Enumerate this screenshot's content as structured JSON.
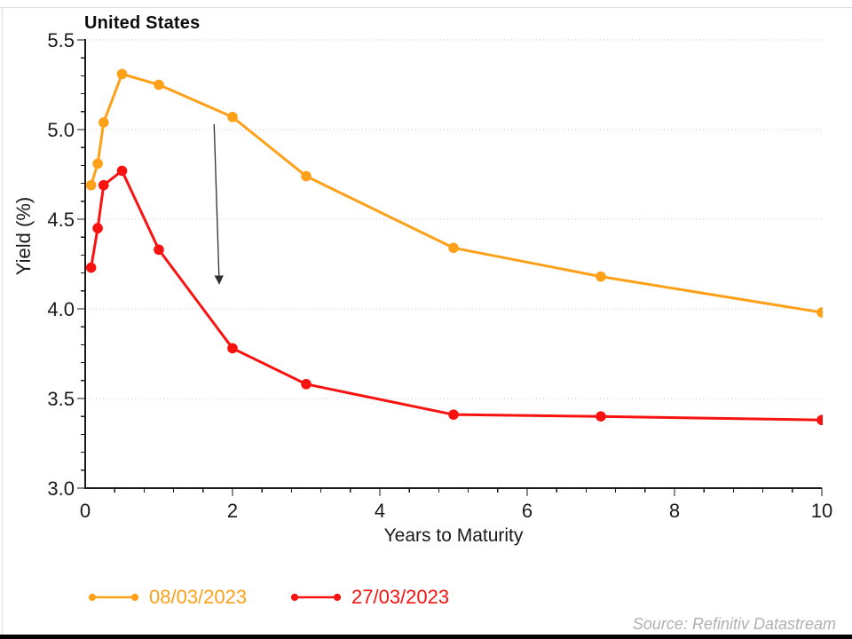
{
  "slide": {
    "source_note": "Source: Refinitiv Datastream"
  },
  "chart_data": {
    "type": "line",
    "title": "United States",
    "xlabel": "Years to Maturity",
    "ylabel": "Yield (%)",
    "xlim": [
      0,
      10
    ],
    "ylim": [
      3.0,
      5.5
    ],
    "x_major_ticks": [
      0,
      2,
      4,
      6,
      8,
      10
    ],
    "x_minor_step": 0.4,
    "y_major_ticks": [
      3.0,
      3.5,
      4.0,
      4.5,
      5.0,
      5.5
    ],
    "y_minor_step": 0.1,
    "grid": "horizontal dotted gridlines at y major ticks",
    "grid_color": "#c9c9c9",
    "axis_color": "#1a1a1a",
    "legend_position": "bottom-left",
    "x": [
      0.08,
      0.17,
      0.25,
      0.5,
      1,
      2,
      3,
      5,
      7,
      10
    ],
    "series": [
      {
        "name": "08/03/2023",
        "color": "#FFA019",
        "values": [
          4.69,
          4.81,
          5.04,
          5.31,
          5.25,
          5.07,
          4.74,
          4.34,
          4.18,
          3.98
        ]
      },
      {
        "name": "27/03/2023",
        "color": "#F81210",
        "values": [
          4.23,
          4.45,
          4.69,
          4.77,
          4.33,
          3.78,
          3.58,
          3.41,
          3.4,
          3.38
        ]
      }
    ],
    "annotations": [
      {
        "type": "arrow",
        "from": {
          "x": 1.75,
          "y": 5.03
        },
        "to": {
          "x": 1.82,
          "y": 4.14
        },
        "color": "#2f2f2f"
      }
    ]
  }
}
